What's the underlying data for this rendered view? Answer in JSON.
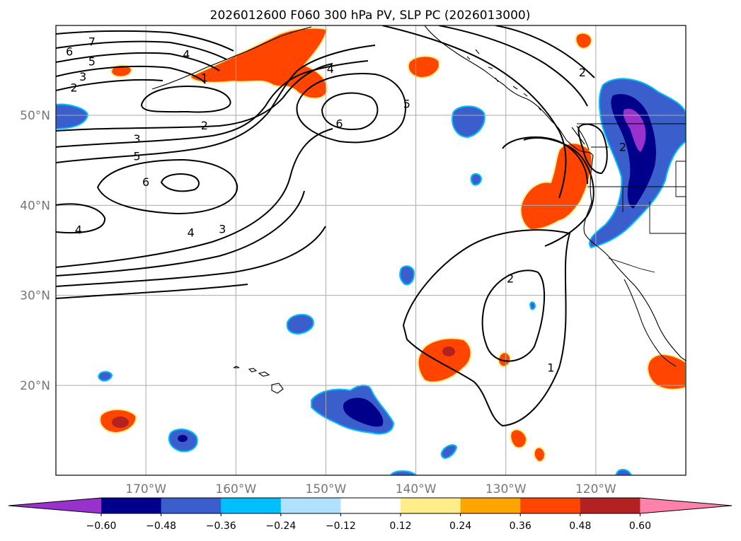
{
  "title": "2026012600 F060 300 hPa PV, SLP PC (2026013000)",
  "map": {
    "lon_labels": [
      {
        "lon": -170,
        "label": "170°W"
      },
      {
        "lon": -160,
        "label": "160°W"
      },
      {
        "lon": -150,
        "label": "150°W"
      },
      {
        "lon": -140,
        "label": "140°W"
      },
      {
        "lon": -130,
        "label": "130°W"
      },
      {
        "lon": -120,
        "label": "120°W"
      }
    ],
    "lat_labels": [
      {
        "lat": 50,
        "label": "50°N"
      },
      {
        "lat": 40,
        "label": "40°N"
      },
      {
        "lat": 30,
        "label": "30°N"
      },
      {
        "lat": 20,
        "label": "20°N"
      }
    ],
    "contour_labels": [
      {
        "text": "7",
        "lon": -176,
        "lat": 58.2
      },
      {
        "text": "6",
        "lon": -178.5,
        "lat": 57.1
      },
      {
        "text": "5",
        "lon": -176,
        "lat": 56.0
      },
      {
        "text": "4",
        "lon": -165.5,
        "lat": 56.8
      },
      {
        "text": "3",
        "lon": -177,
        "lat": 54.3
      },
      {
        "text": "2",
        "lon": -178,
        "lat": 53.1
      },
      {
        "text": "1",
        "lon": -163.5,
        "lat": 54.2
      },
      {
        "text": "4",
        "lon": -149.5,
        "lat": 55.2
      },
      {
        "text": "5",
        "lon": -141,
        "lat": 51.3
      },
      {
        "text": "6",
        "lon": -148.5,
        "lat": 49.1
      },
      {
        "text": "2",
        "lon": -121.5,
        "lat": 54.8
      },
      {
        "text": "2",
        "lon": -163.5,
        "lat": 48.9
      },
      {
        "text": "3",
        "lon": -171,
        "lat": 47.4
      },
      {
        "text": "5",
        "lon": -171,
        "lat": 45.5
      },
      {
        "text": "6",
        "lon": -170,
        "lat": 42.6
      },
      {
        "text": "4",
        "lon": -177.5,
        "lat": 37.3
      },
      {
        "text": "4",
        "lon": -165,
        "lat": 37.0
      },
      {
        "text": "3",
        "lon": -161.5,
        "lat": 37.4
      },
      {
        "text": "2",
        "lon": -129.5,
        "lat": 31.9
      },
      {
        "text": "1",
        "lon": -125,
        "lat": 22.0
      },
      {
        "text": "2",
        "lon": -117,
        "lat": 46.5
      }
    ]
  },
  "colorbar": {
    "ticks": [
      "−0.60",
      "−0.48",
      "−0.36",
      "−0.24",
      "−0.12",
      "0.12",
      "0.24",
      "0.36",
      "0.48",
      "0.60"
    ],
    "colors": [
      "#9932cc",
      "#00008b",
      "#3a5fcd",
      "#00bfff",
      "#b0e2ff",
      "#ffffff",
      "#ffec8b",
      "#ffa500",
      "#ff4500",
      "#b22222",
      "#ff82ab"
    ]
  },
  "colors": {
    "orange": "#ff4500",
    "dark_red": "#b22222",
    "light_orange": "#ffa500",
    "yellow": "#ffec8b",
    "navy": "#00008b",
    "royal_blue": "#3a5fcd",
    "sky_blue": "#00bfff",
    "light_blue": "#b0e2ff",
    "purple": "#9932cc"
  }
}
